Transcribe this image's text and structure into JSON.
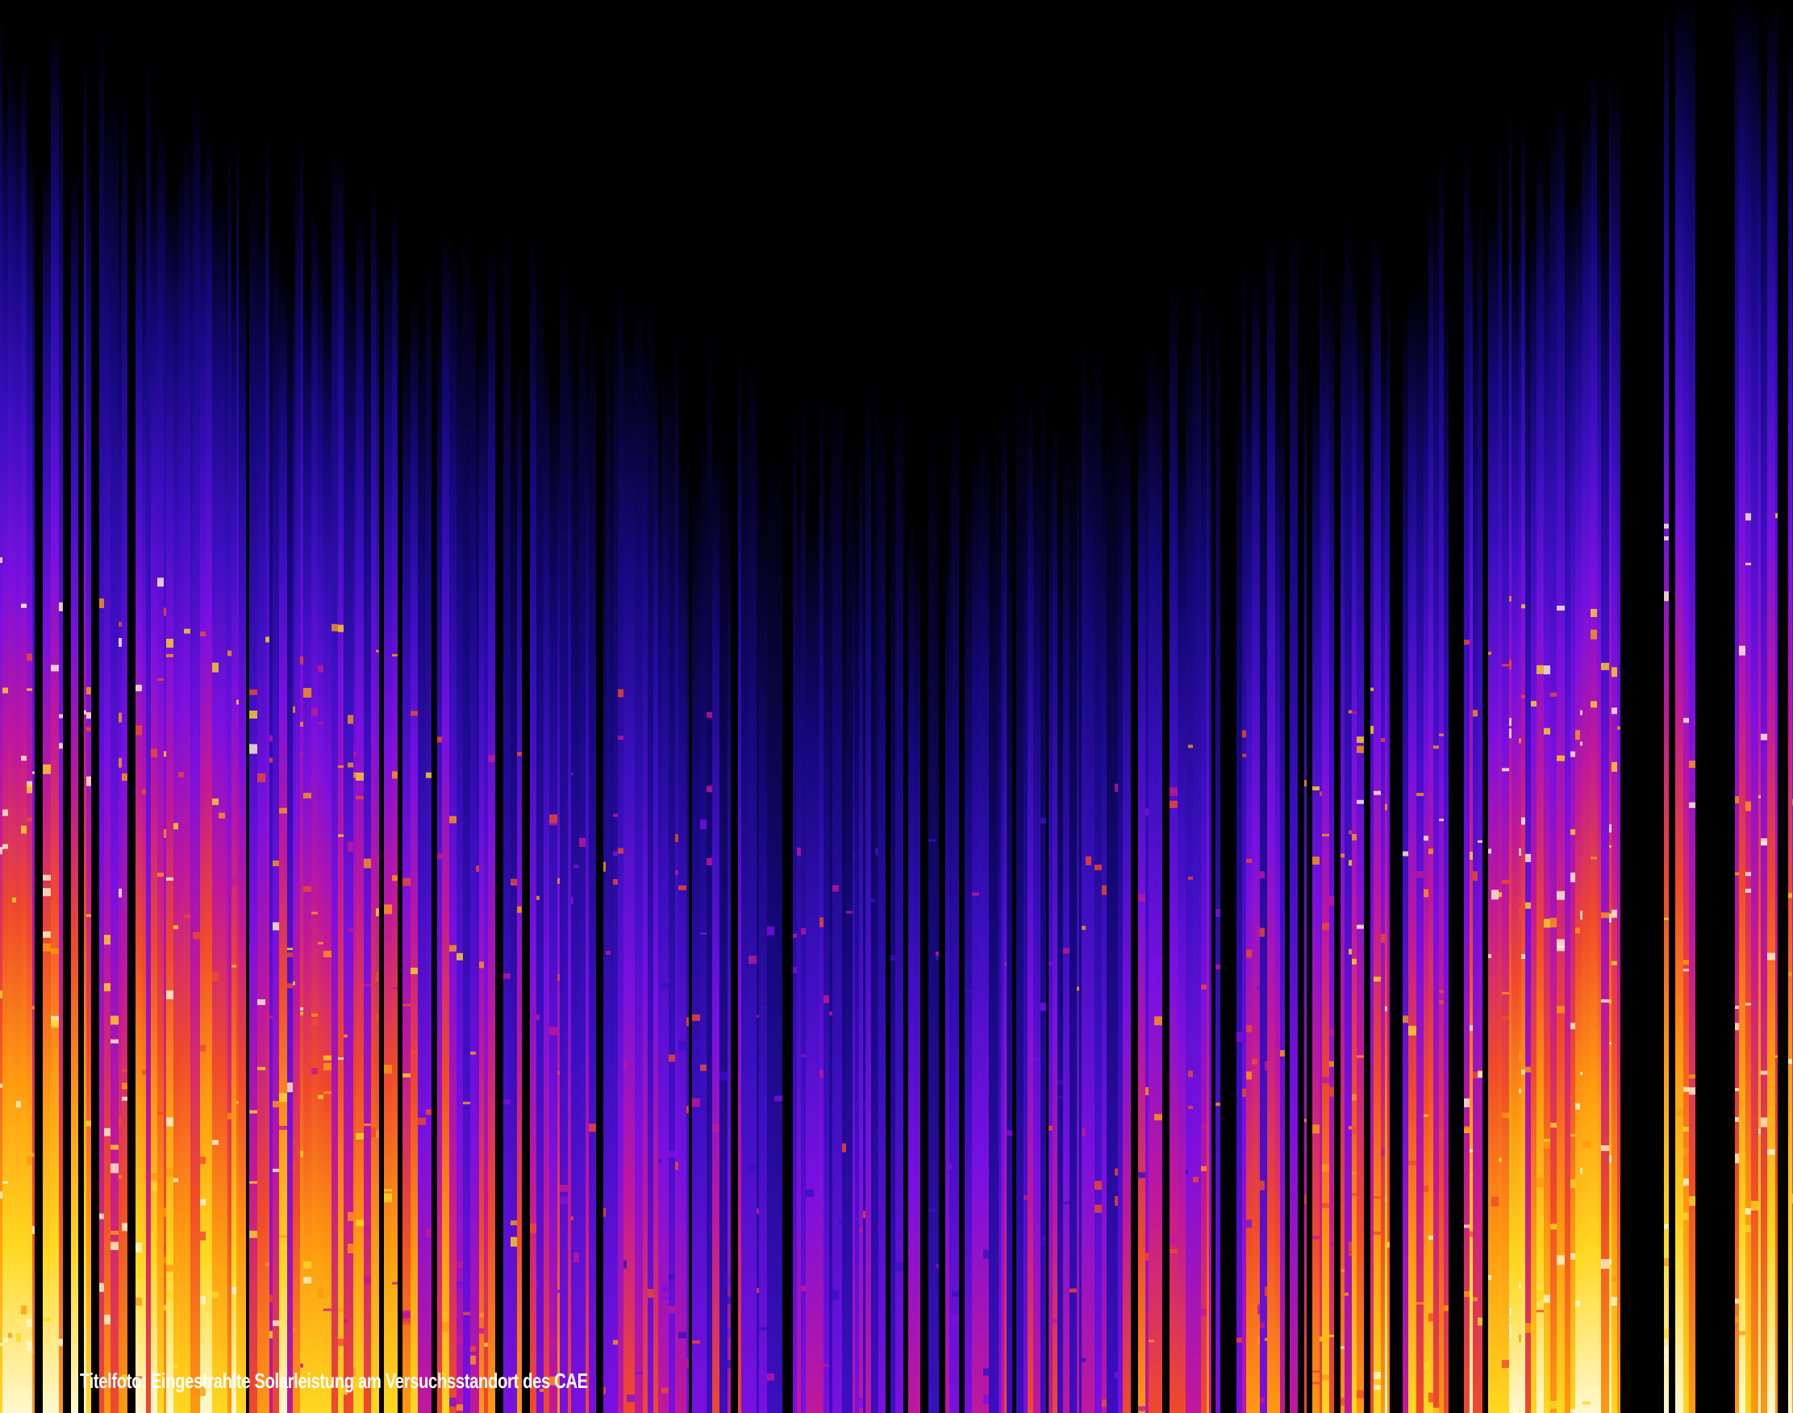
{
  "caption": "Titelfoto: Eingestrahlte Solarleistung am Versuchsstandort des CAE"
}
